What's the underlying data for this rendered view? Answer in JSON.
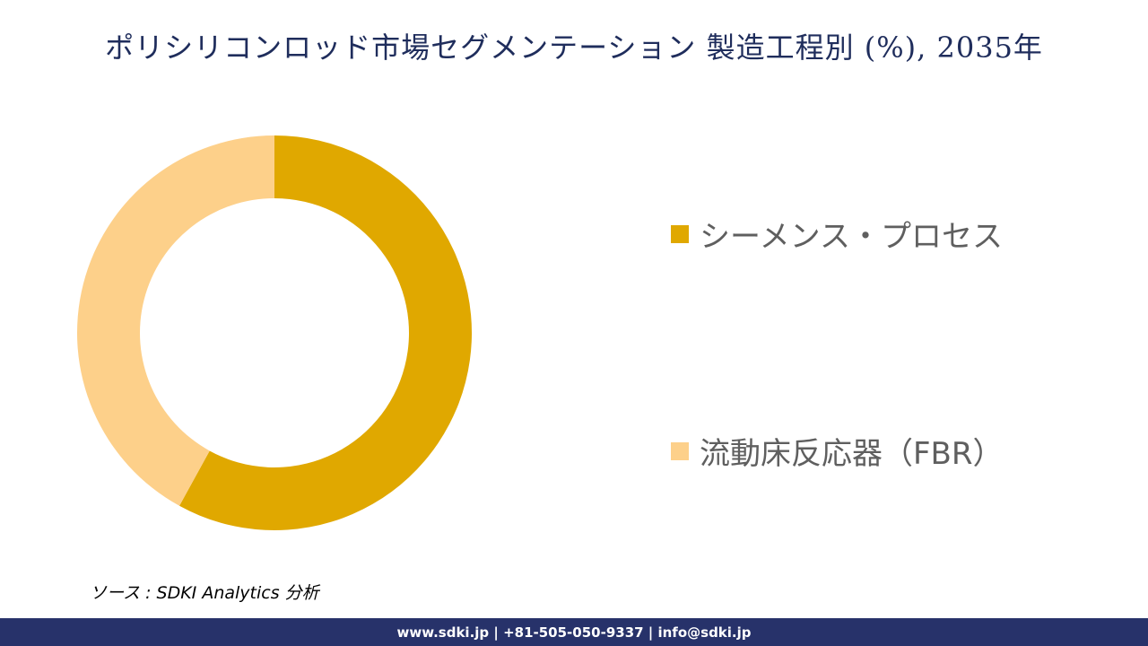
{
  "title": "ポリシリコンロッド市場セグメンテーション 製造工程別 (%), 2035年",
  "chart_data": {
    "type": "pie",
    "title": "ポリシリコンロッド市場セグメンテーション 製造工程別 (%), 2035年",
    "categories": [
      "シーメンス・プロセス",
      "流動床反応器（FBR）"
    ],
    "values": [
      58,
      42
    ],
    "colors": [
      "#E0A800",
      "#FDD08A"
    ],
    "legend_position": "right"
  },
  "source_text": "ソース : SDKI Analytics 分析",
  "footer_text": "www.sdki.jp | +81-505-050-9337 | info@sdki.jp"
}
